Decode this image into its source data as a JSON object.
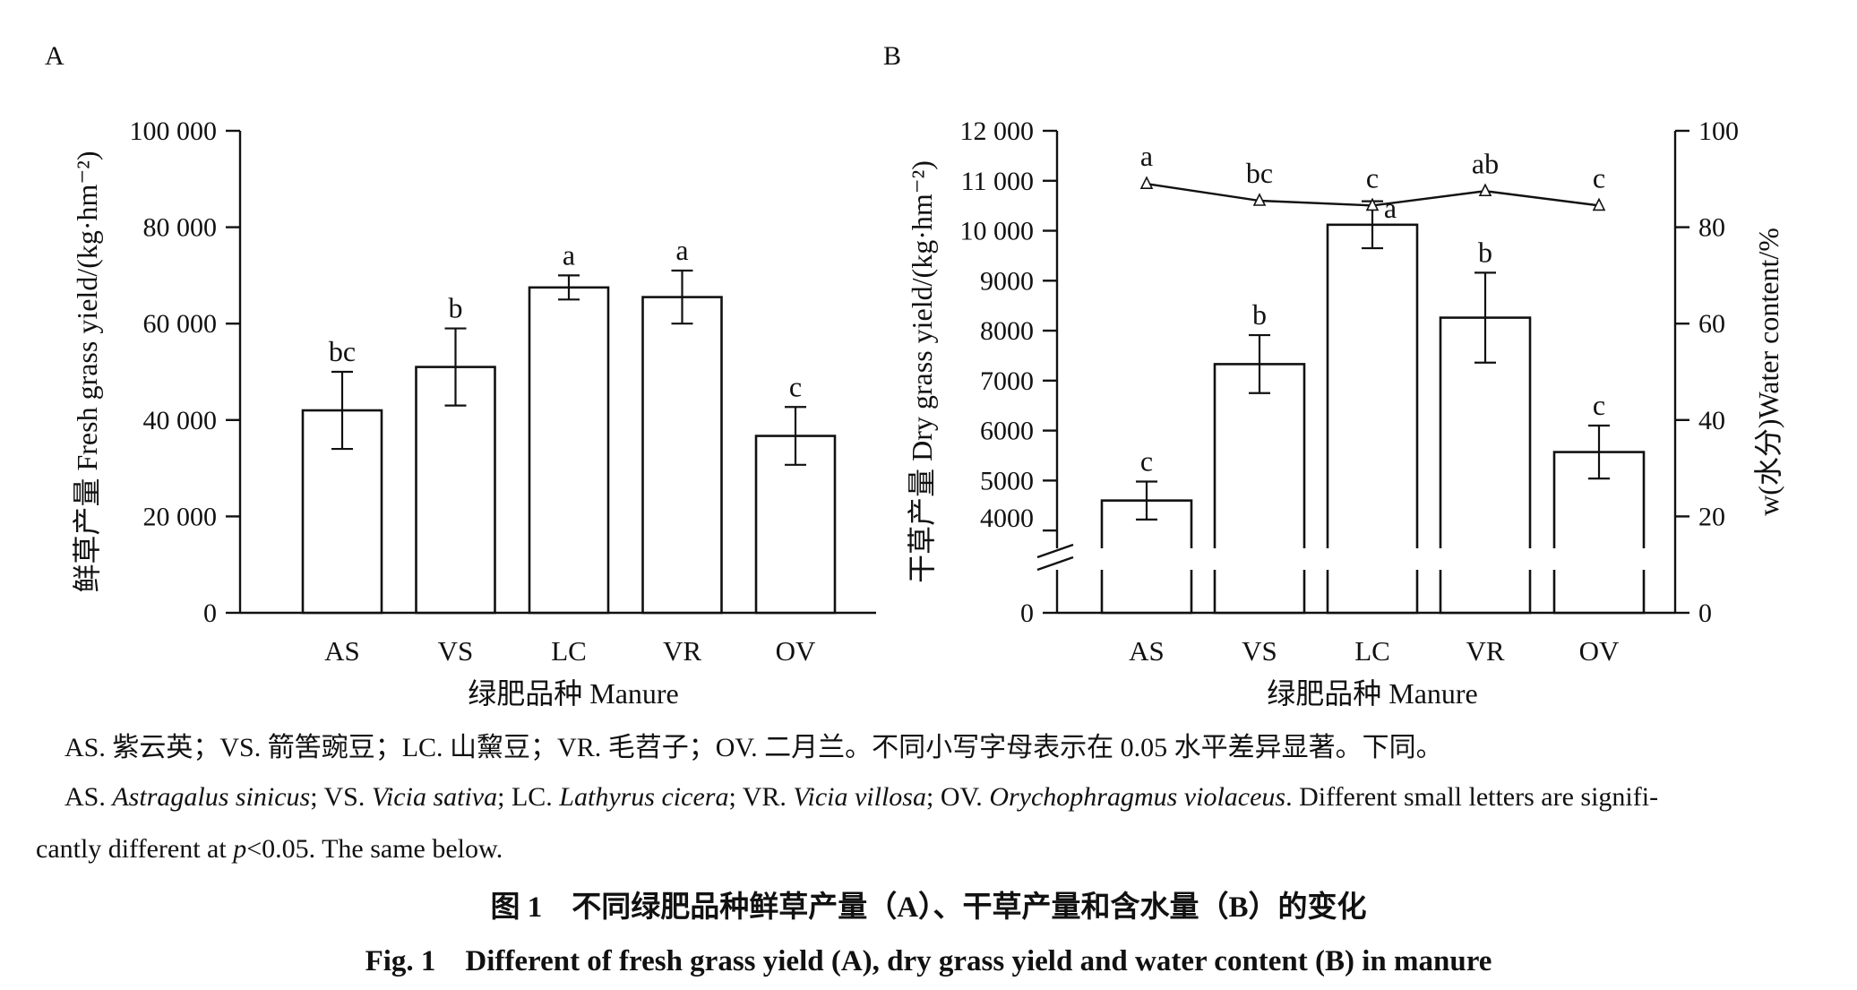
{
  "chart_data": [
    {
      "type": "bar",
      "panel_label": "A",
      "categories": [
        "AS",
        "VS",
        "LC",
        "VR",
        "OV"
      ],
      "values": [
        42000,
        51000,
        67500,
        65500,
        36700
      ],
      "errors": [
        8000,
        8000,
        2500,
        5500,
        6000
      ],
      "significance": [
        "bc",
        "b",
        "a",
        "a",
        "c"
      ],
      "ylim": [
        0,
        100000
      ],
      "yticks": [
        0,
        20000,
        40000,
        60000,
        80000,
        100000
      ],
      "ytick_labels": [
        "0",
        "20 000",
        "40 000",
        "60 000",
        "80 000",
        "100 000"
      ],
      "ylabel_zh": "鲜草产量",
      "ylabel_en": "Fresh grass yield/(kg·hm⁻²)",
      "xlabel": "绿肥品种 Manure"
    },
    {
      "type": "bar+line",
      "panel_label": "B",
      "categories": [
        "AS",
        "VS",
        "LC",
        "VR",
        "OV"
      ],
      "bar_series": {
        "values": [
          4600,
          7330,
          10120,
          8260,
          5570
        ],
        "errors": [
          380,
          580,
          470,
          900,
          530
        ],
        "significance": [
          "c",
          "b",
          "a",
          "b",
          "c"
        ]
      },
      "line_series": {
        "values": [
          89,
          85.5,
          84.5,
          87.5,
          84.5
        ],
        "significance": [
          "a",
          "bc",
          "c",
          "ab",
          "c"
        ],
        "marker": "open-triangle"
      },
      "ylim_left": [
        0,
        12000
      ],
      "left_axis_break": true,
      "yticks_left": [
        0,
        4000,
        5000,
        6000,
        7000,
        8000,
        9000,
        10000,
        11000,
        12000
      ],
      "ytick_labels_left": [
        "0",
        "4000",
        "5000",
        "6000",
        "7000",
        "8000",
        "9000",
        "10 000",
        "11 000",
        "12 000"
      ],
      "ylim_right": [
        0,
        100
      ],
      "yticks_right": [
        0,
        20,
        40,
        60,
        80,
        100
      ],
      "ytick_labels_right": [
        "0",
        "20",
        "40",
        "60",
        "80",
        "100"
      ],
      "ylabel_left_zh": "干草产量",
      "ylabel_left_en": "Dry grass yield/(kg·hm⁻²)",
      "ylabel_right": "w(水分)Water content/%",
      "xlabel": "绿肥品种 Manure"
    }
  ],
  "caption": {
    "abbrev_zh": "AS. 紫云英；VS. 箭筈豌豆；LC. 山黧豆；VR. 毛苕子；OV. 二月兰。不同小写字母表示在 0.05 水平差异显著。下同。",
    "abbrev_en": {
      "as": "AS. ",
      "as_species": "Astragalus sinicus",
      "vs": "; VS. ",
      "vs_species": "Vicia sativa",
      "lc": "; LC. ",
      "lc_species": "Lathyrus cicera",
      "vr": "; VR. ",
      "vr_species": "Vicia villosa",
      "ov": "; OV. ",
      "ov_species": "Orychophragmus violaceus",
      "tail": ". Different small letters are signifi-",
      "line2_pre": "cantly different at ",
      "p": "p",
      "line2_post": "<0.05. The same below."
    },
    "figure_title_zh": "图 1　不同绿肥品种鲜草产量（A）、干草产量和含水量（B）的变化",
    "figure_title_en": "Fig. 1　Different of fresh grass yield (A), dry grass yield and water content (B) in manure"
  }
}
